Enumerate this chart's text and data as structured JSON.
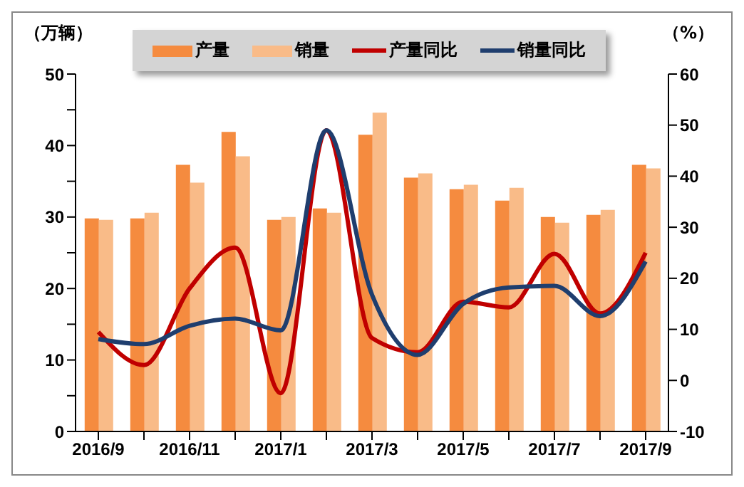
{
  "chart_data": {
    "type": "bar",
    "ylabel": "（万辆）",
    "y2label": "（%）",
    "categories": [
      "2016/9",
      null,
      "2016/11",
      null,
      "2017/1",
      null,
      "2017/3",
      null,
      "2017/5",
      null,
      "2017/7",
      null,
      "2017/9"
    ],
    "series": [
      {
        "name": "产量",
        "color": "#f58b3f",
        "values": [
          29.8,
          29.8,
          37.3,
          41.9,
          29.6,
          31.2,
          41.5,
          35.5,
          33.9,
          32.3,
          30.0,
          30.3,
          37.3
        ]
      },
      {
        "name": "销量",
        "color": "#f9bb88",
        "values": [
          29.6,
          30.6,
          34.8,
          38.5,
          30.0,
          30.6,
          44.6,
          36.1,
          34.5,
          34.1,
          29.2,
          31.0,
          36.8
        ]
      },
      {
        "name": "产量同比",
        "type": "line",
        "axis": "y2",
        "color": "#c00000",
        "values": [
          9.5,
          3,
          18,
          26,
          -2.5,
          49,
          8.3,
          5.5,
          15.4,
          14.3,
          24.8,
          13.1,
          25
        ]
      },
      {
        "name": "销量同比",
        "type": "line",
        "axis": "y2",
        "color": "#1f3e6e",
        "values": [
          8.1,
          7.1,
          10.7,
          12.1,
          9.8,
          49,
          16.8,
          5,
          15,
          18.2,
          18.5,
          12.6,
          23.3
        ]
      }
    ],
    "ylim": [
      0,
      50
    ],
    "yticks": [
      0,
      {
        "value": 5,
        "label": null
      },
      10,
      {
        "value": 15,
        "label": null
      },
      20,
      {
        "value": 25,
        "label": null
      },
      30,
      {
        "value": 35,
        "label": null
      },
      40,
      {
        "value": 45,
        "label": null
      },
      50
    ],
    "y2lim": [
      -10,
      60
    ],
    "y2ticks": [
      -10,
      0,
      10,
      20,
      30,
      40,
      50,
      60
    ],
    "legend": "top",
    "marker": "none",
    "line_style": "solid"
  }
}
